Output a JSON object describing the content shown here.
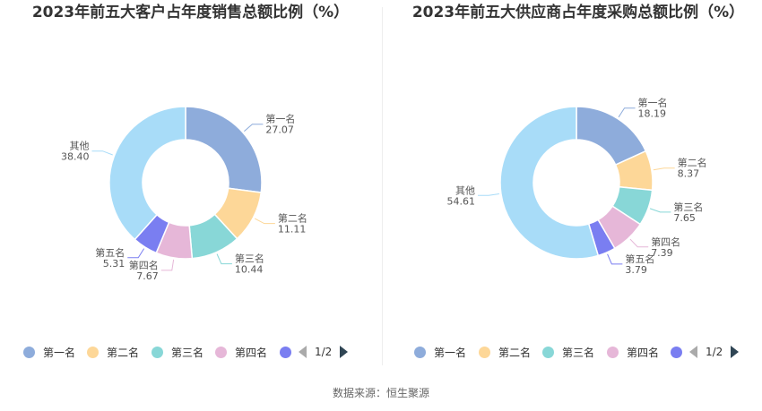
{
  "chart_data": [
    {
      "type": "pie",
      "title": "2023年前五大客户占年度销售总额比例（%）",
      "categories": [
        "第一名",
        "第二名",
        "第三名",
        "第四名",
        "第五名",
        "其他"
      ],
      "values": [
        27.07,
        11.11,
        10.44,
        7.67,
        5.31,
        38.4
      ],
      "value_labels": [
        "27.07",
        "11.11",
        "10.44",
        "7.67",
        "5.31",
        "38.40"
      ],
      "colors": [
        "#8eacdb",
        "#fdd798",
        "#88d7d7",
        "#e6b7d8",
        "#7a7ef1",
        "#a8dcf8"
      ],
      "legend": {
        "position": "bottom",
        "items": [
          "第一名",
          "第二名",
          "第三名",
          "第四名"
        ],
        "page": "1/2"
      }
    },
    {
      "type": "pie",
      "title": "2023年前五大供应商占年度采购总额比例（%）",
      "categories": [
        "第一名",
        "第二名",
        "第三名",
        "第四名",
        "第五名",
        "其他"
      ],
      "values": [
        18.19,
        8.37,
        7.65,
        7.39,
        3.79,
        54.61
      ],
      "value_labels": [
        "18.19",
        "8.37",
        "7.65",
        "7.39",
        "3.79",
        "54.61"
      ],
      "colors": [
        "#8eacdb",
        "#fdd798",
        "#88d7d7",
        "#e6b7d8",
        "#7a7ef1",
        "#a8dcf8"
      ],
      "legend": {
        "position": "bottom",
        "items": [
          "第一名",
          "第二名",
          "第三名",
          "第四名"
        ],
        "page": "1/2"
      }
    }
  ],
  "footer": {
    "source": "数据来源：恒生聚源"
  }
}
